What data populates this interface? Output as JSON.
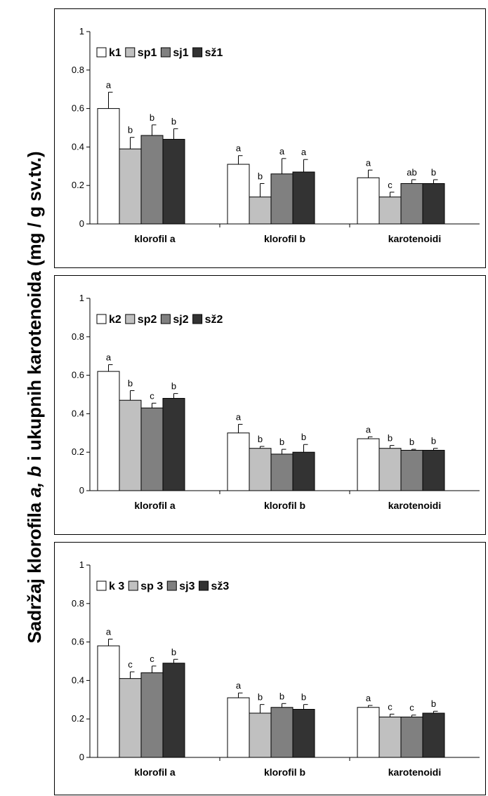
{
  "y_axis_title": {
    "part1": "Sadržaj klorofila ",
    "part2": "a, b",
    "part3": " i ukupnih karotenoida (mg / g sv.tv.)"
  },
  "colors": {
    "series": [
      "#ffffff",
      "#c0c0c0",
      "#808080",
      "#333333"
    ]
  },
  "chart_data": [
    {
      "type": "bar",
      "categories": [
        "klorofil a",
        "klorofil b",
        "karotenoidi"
      ],
      "ylim": [
        0,
        1
      ],
      "yticks": [
        "0",
        "0.2",
        "0.4",
        "0.6",
        "0.8",
        "1"
      ],
      "legend_position": "top-left",
      "series": [
        {
          "name": "k1",
          "values": [
            0.6,
            0.31,
            0.24
          ],
          "errors": [
            0.085,
            0.045,
            0.04
          ],
          "labels": [
            "a",
            "a",
            "a"
          ]
        },
        {
          "name": "sp1",
          "values": [
            0.39,
            0.14,
            0.14
          ],
          "errors": [
            0.06,
            0.07,
            0.025
          ],
          "labels": [
            "b",
            "b",
            "c"
          ]
        },
        {
          "name": "sj1",
          "values": [
            0.46,
            0.26,
            0.21
          ],
          "errors": [
            0.055,
            0.08,
            0.02
          ],
          "labels": [
            "b",
            "a",
            "ab"
          ]
        },
        {
          "name": "sž1",
          "values": [
            0.44,
            0.27,
            0.21
          ],
          "errors": [
            0.055,
            0.065,
            0.02
          ],
          "labels": [
            "b",
            "a",
            "b"
          ]
        }
      ]
    },
    {
      "type": "bar",
      "categories": [
        "klorofil a",
        "klorofil b",
        "karotenoidi"
      ],
      "ylim": [
        0,
        1
      ],
      "yticks": [
        "0",
        "0.2",
        "0.4",
        "0.6",
        "0.8",
        "1"
      ],
      "legend_position": "top-left",
      "series": [
        {
          "name": "k2",
          "values": [
            0.62,
            0.3,
            0.27
          ],
          "errors": [
            0.035,
            0.045,
            0.01
          ],
          "labels": [
            "a",
            "a",
            "a"
          ]
        },
        {
          "name": "sp2",
          "values": [
            0.47,
            0.22,
            0.22
          ],
          "errors": [
            0.05,
            0.01,
            0.015
          ],
          "labels": [
            "b",
            "b",
            "b"
          ]
        },
        {
          "name": "sj2",
          "values": [
            0.43,
            0.19,
            0.21
          ],
          "errors": [
            0.025,
            0.025,
            0.005
          ],
          "labels": [
            "c",
            "b",
            "b"
          ]
        },
        {
          "name": "sž2",
          "values": [
            0.48,
            0.2,
            0.21
          ],
          "errors": [
            0.025,
            0.04,
            0.01
          ],
          "labels": [
            "b",
            "b",
            "b"
          ]
        }
      ]
    },
    {
      "type": "bar",
      "categories": [
        "klorofil a",
        "klorofil b",
        "karotenoidi"
      ],
      "ylim": [
        0,
        1
      ],
      "yticks": [
        "0",
        "0.2",
        "0.4",
        "0.6",
        "0.8",
        "1"
      ],
      "legend_position": "top-left",
      "series": [
        {
          "name": "k 3",
          "values": [
            0.58,
            0.31,
            0.26
          ],
          "errors": [
            0.035,
            0.025,
            0.01
          ],
          "labels": [
            "a",
            "a",
            "a"
          ]
        },
        {
          "name": "sp 3",
          "values": [
            0.41,
            0.23,
            0.21
          ],
          "errors": [
            0.035,
            0.045,
            0.015
          ],
          "labels": [
            "c",
            "b",
            "c"
          ]
        },
        {
          "name": "sj3",
          "values": [
            0.44,
            0.26,
            0.21
          ],
          "errors": [
            0.035,
            0.02,
            0.01
          ],
          "labels": [
            "c",
            "b",
            "c"
          ]
        },
        {
          "name": "sž3",
          "values": [
            0.49,
            0.25,
            0.23
          ],
          "errors": [
            0.02,
            0.025,
            0.01
          ],
          "labels": [
            "b",
            "b",
            "b"
          ]
        }
      ]
    }
  ]
}
